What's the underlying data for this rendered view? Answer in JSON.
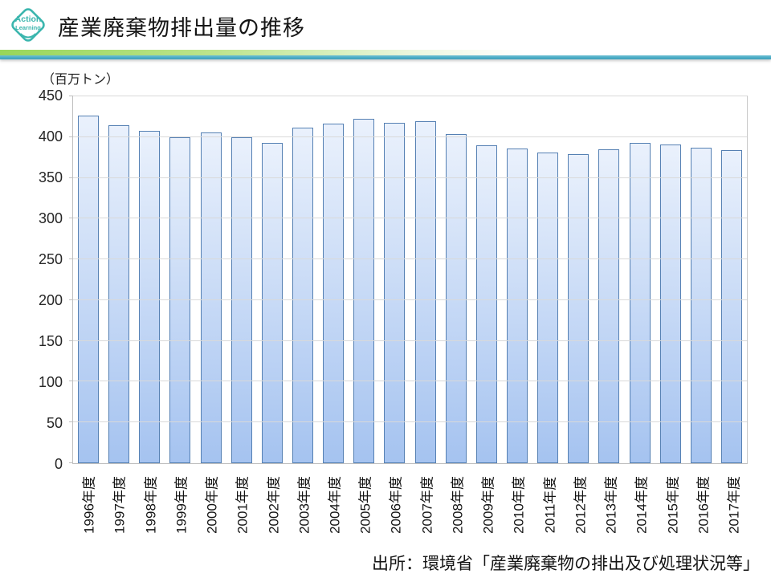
{
  "logo": {
    "line1": "Action",
    "line2": "Learning",
    "color": "#3bb6ae"
  },
  "header": {
    "title": "産業廃棄物排出量の推移"
  },
  "chart_data": {
    "type": "bar",
    "title": "産業廃棄物排出量の推移",
    "unit_label": "（百万トン）",
    "categories": [
      "1996年度",
      "1997年度",
      "1998年度",
      "1999年度",
      "2000年度",
      "2001年度",
      "2002年度",
      "2003年度",
      "2004年度",
      "2005年度",
      "2006年度",
      "2007年度",
      "2008年度",
      "2009年度",
      "2010年度",
      "2011年度",
      "2012年度",
      "2013年度",
      "2014年度",
      "2015年度",
      "2016年度",
      "2017年度"
    ],
    "values": [
      426,
      415,
      408,
      400,
      406,
      400,
      393,
      412,
      417,
      422,
      418,
      419,
      404,
      390,
      386,
      381,
      379,
      385,
      393,
      391,
      387,
      384
    ],
    "ylim": [
      0,
      450
    ],
    "ytick_step": 50,
    "grid": true,
    "legend": false,
    "bar_fill_top": "#eaf1fc",
    "bar_fill_bottom": "#a5c3f0",
    "bar_border": "#5580b3",
    "gridline_color": "#d9d9d9"
  },
  "source": {
    "text": "出所：環境省「産業廃棄物の排出及び処理状況等」"
  },
  "colors": {
    "divider_teal": "#4bacc6",
    "divider_green": "#98d65a",
    "axis": "#bfbfbf"
  }
}
